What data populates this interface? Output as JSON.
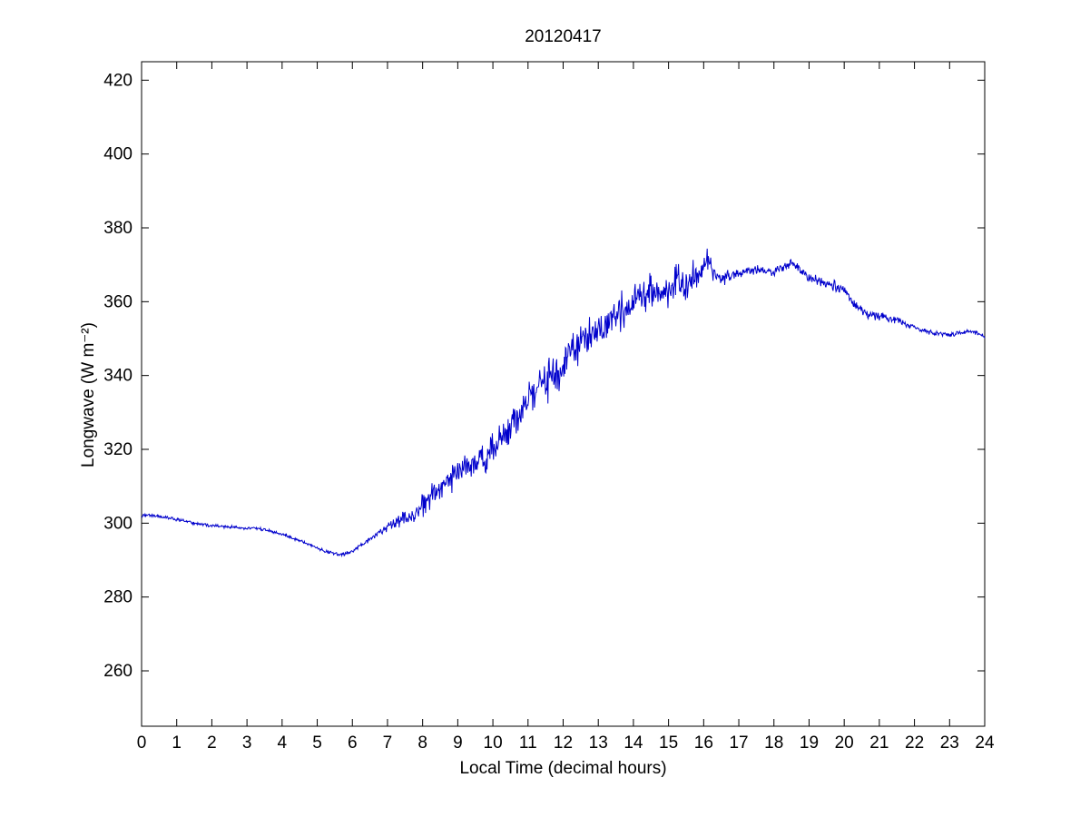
{
  "figure": {
    "title": "20120417",
    "xlabel": "Local Time (decimal hours)",
    "ylabel": "Longwave (W m⁻²)"
  },
  "chart_data": {
    "type": "line",
    "title": "20120417",
    "xlabel": "Local Time (decimal hours)",
    "ylabel": "Longwave (W m^-2)",
    "legend": "none",
    "grid": false,
    "xlim": [
      0,
      24
    ],
    "ylim": [
      245,
      425
    ],
    "x_ticks": [
      0,
      1,
      2,
      3,
      4,
      5,
      6,
      7,
      8,
      9,
      10,
      11,
      12,
      13,
      14,
      15,
      16,
      17,
      18,
      19,
      20,
      21,
      22,
      23,
      24
    ],
    "y_ticks": [
      260,
      280,
      300,
      320,
      340,
      360,
      380,
      400,
      420
    ],
    "line_color": "#0000CC",
    "axis_color": "#000000",
    "samples_per_hour": 60,
    "series": [
      {
        "name": "longwave",
        "anchors_hours": [
          0,
          0.25,
          0.5,
          1,
          1.5,
          2,
          2.5,
          3,
          3.25,
          3.5,
          4,
          4.5,
          5,
          5.25,
          5.5,
          5.75,
          6,
          6.25,
          6.5,
          7,
          7.25,
          7.5,
          7.75,
          8,
          8.25,
          8.5,
          9,
          9.25,
          9.5,
          10,
          10.25,
          10.5,
          11,
          11.25,
          11.5,
          12,
          12.25,
          12.5,
          13,
          13.25,
          13.5,
          14,
          14.25,
          14.5,
          14.75,
          15,
          15.25,
          15.5,
          15.75,
          16,
          16.1,
          16.25,
          16.5,
          17,
          17.5,
          18,
          18.25,
          18.5,
          18.75,
          19,
          19.25,
          19.5,
          20,
          20.25,
          20.5,
          21,
          21.5,
          22,
          22.5,
          23,
          23.25,
          23.5,
          23.75,
          24
        ],
        "anchors_values": [
          302,
          302.2,
          301.8,
          301,
          300,
          299.3,
          299,
          298.5,
          298.7,
          298.2,
          297,
          295.3,
          293.3,
          292.3,
          291.7,
          291.5,
          292.3,
          294,
          295.8,
          299,
          300,
          301.5,
          302,
          304.5,
          307.5,
          310.5,
          313,
          315.5,
          316.5,
          320,
          322.5,
          326,
          333,
          336,
          338.5,
          343,
          346,
          349,
          352,
          354,
          356,
          359.5,
          362,
          364,
          361.5,
          363.5,
          366,
          364.5,
          367,
          369.5,
          373,
          368,
          366.5,
          368,
          368.5,
          368,
          369,
          370.5,
          368.5,
          366.5,
          365.5,
          364.5,
          363.5,
          359.5,
          357.5,
          356,
          355,
          353,
          351.5,
          351,
          351.5,
          352,
          351.5,
          350.5
        ]
      }
    ],
    "noise": {
      "seed": 42,
      "hours": [
        0,
        5,
        6.5,
        7,
        7.5,
        8,
        9,
        10,
        11,
        12,
        13,
        14,
        15,
        16,
        16.5,
        17,
        18,
        19,
        20,
        21,
        22,
        24
      ],
      "amplitude": [
        0.3,
        0.3,
        0.5,
        0.8,
        1.5,
        2.2,
        2.5,
        3.2,
        3.5,
        3.8,
        3.5,
        3.2,
        3.0,
        2.8,
        1.5,
        1.0,
        0.9,
        1.0,
        1.0,
        0.8,
        0.5,
        0.4
      ]
    }
  }
}
